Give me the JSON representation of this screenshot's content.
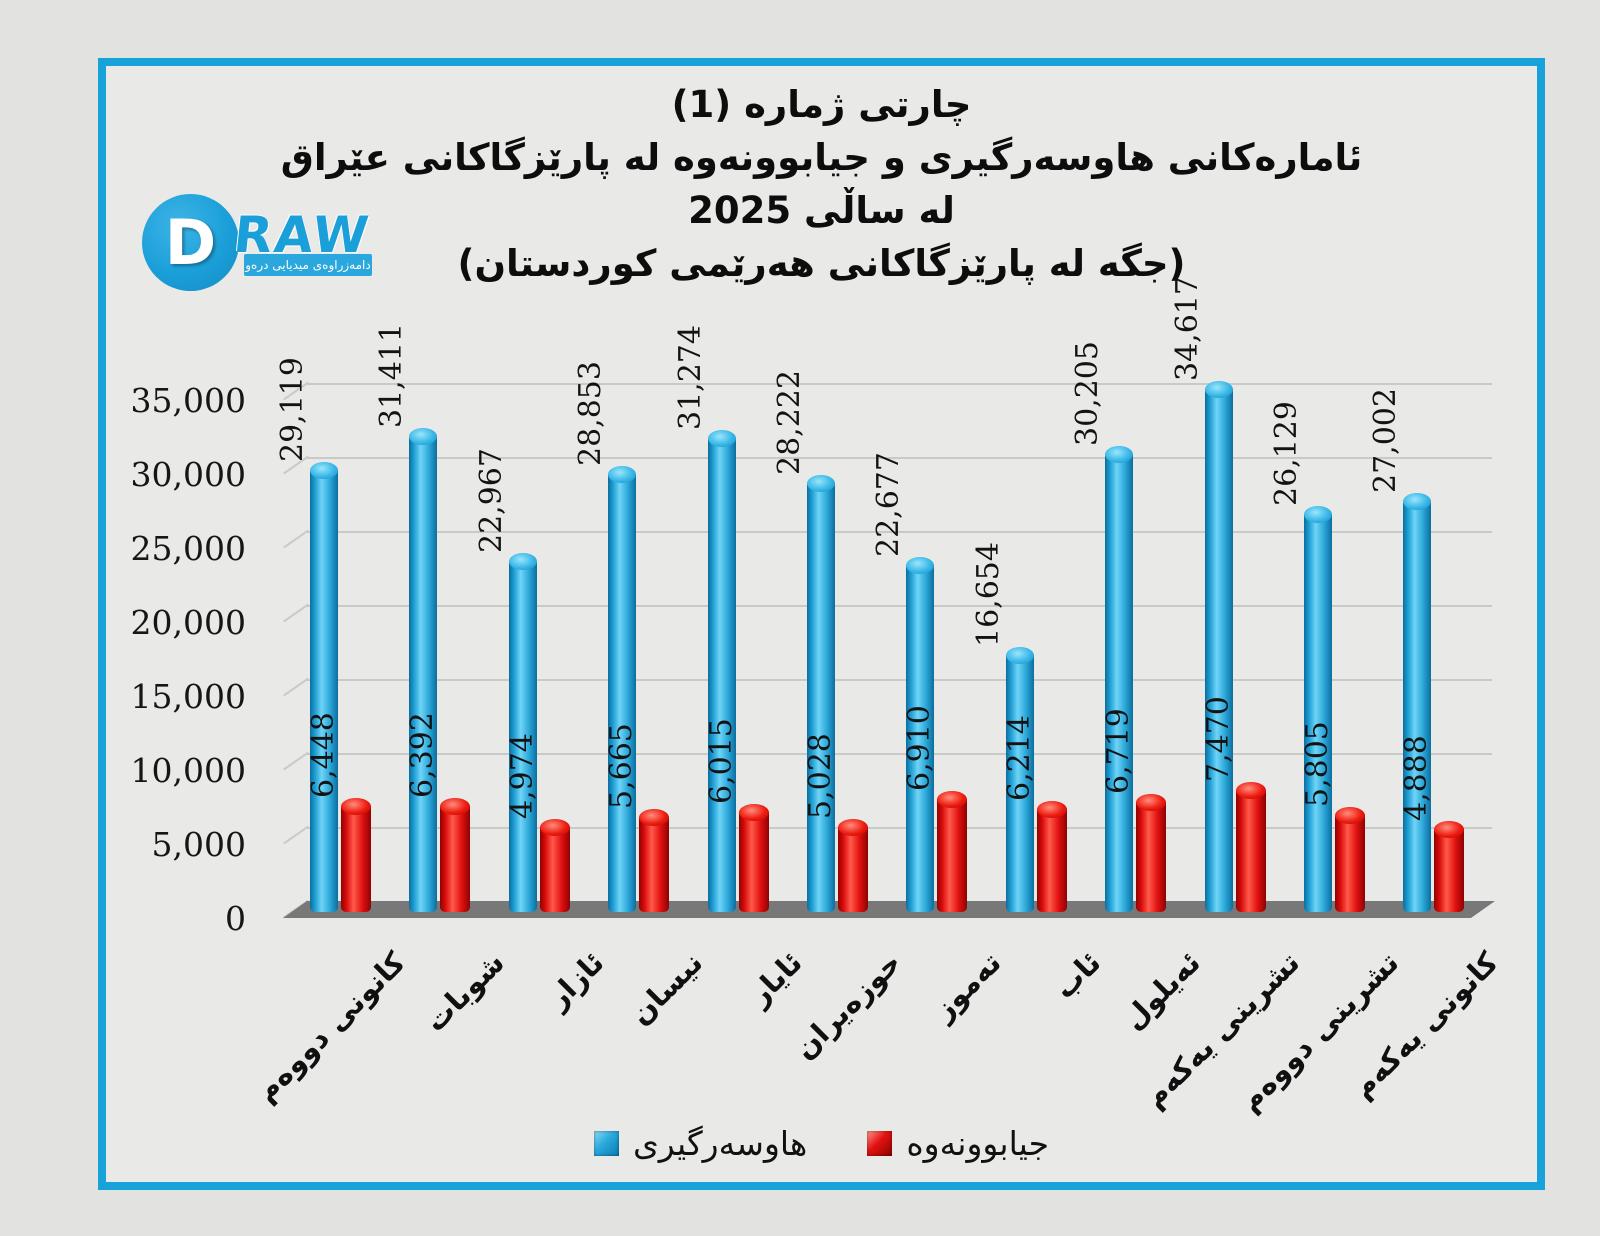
{
  "logo": {
    "d": "D",
    "raw": "RAW",
    "ribbon": "دامەزراوەی میدیایی درەو"
  },
  "colors": {
    "frame_border": "#18a2da",
    "background": "#e9e9e8",
    "marriage_bar": "#1b9fd9",
    "divorce_bar": "#e60e0e",
    "floor": "#787878",
    "gridline": "#c9c9c8",
    "text": "#0d0d0d"
  },
  "chart_data": {
    "type": "bar",
    "bar_style": "cylinder-3d",
    "title": [
      "چارتی ژماره (1)",
      "ئامارەکانی هاوسەرگیری و جیابوونەوە لە پارێزگاکانی عێراق",
      "لە ساڵی 2025",
      "(جگە لە پارێزگاکانی هەرێمی کوردستان)"
    ],
    "categories": [
      "کانونی دووەم",
      "شوبات",
      "ئازار",
      "نیسان",
      "ئایار",
      "حوزەیران",
      "تەموز",
      "ئاب",
      "ئەیلول",
      "تشرینی یەکەم",
      "تشرینی دووەم",
      "کانونی یەکەم"
    ],
    "series": [
      {
        "name": "هاوسەرگیری",
        "color": "#1b9fd9",
        "values": [
          29119,
          31411,
          22967,
          28853,
          31274,
          28222,
          22677,
          16654,
          30205,
          34617,
          26129,
          27002
        ],
        "labels": [
          "29,119",
          "31,411",
          "22,967",
          "28,853",
          "31,274",
          "28,222",
          "22,677",
          "16,654",
          "30,205",
          "34,617",
          "26,129",
          "27,002"
        ]
      },
      {
        "name": "جیابوونەوە",
        "color": "#e60e0e",
        "values": [
          6448,
          6392,
          4974,
          5665,
          6015,
          5028,
          6910,
          6214,
          6719,
          7470,
          5805,
          4888
        ],
        "labels": [
          "6,448",
          "6,392",
          "4,974",
          "5,665",
          "6,015",
          "5,028",
          "6,910",
          "6,214",
          "6,719",
          "7,470",
          "5,805",
          "4,888"
        ]
      }
    ],
    "ylim": [
      0,
      35000
    ],
    "ytick_values": [
      0,
      5000,
      10000,
      15000,
      20000,
      25000,
      30000,
      35000
    ],
    "ytick_labels": [
      "0",
      "5,000",
      "10,000",
      "15,000",
      "20,000",
      "25,000",
      "30,000",
      "35,000"
    ],
    "grid": true,
    "legend_position": "bottom"
  }
}
